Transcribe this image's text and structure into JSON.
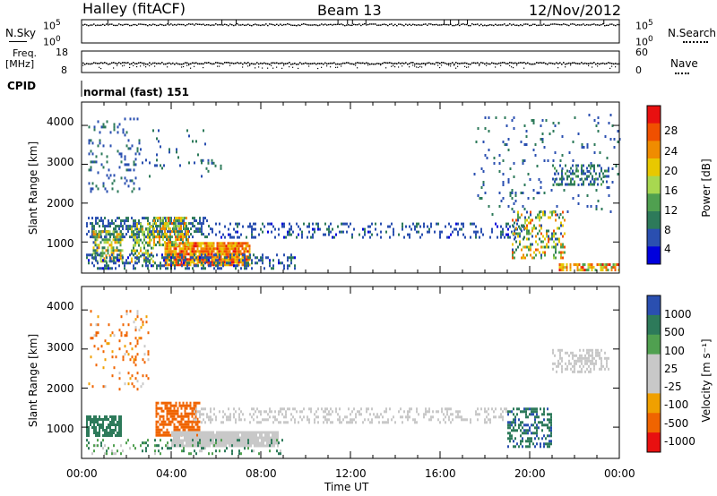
{
  "header": {
    "title": "Halley (fitACF)",
    "beam": "Beam 13",
    "date": "12/Nov/2012"
  },
  "status_panels": {
    "nsky_label": "N.Sky",
    "nsearch_label": "N.Search",
    "nsky_ticks": [
      "10^5",
      "10^0"
    ],
    "nsearch_ticks": [
      "10^5",
      "10^0"
    ],
    "freq_label_line1": "Freq.",
    "freq_label_line2": "[MHz]",
    "freq_ticks": [
      "18",
      "8"
    ],
    "nave_label": "Nave",
    "nave_ticks": [
      "60",
      "0"
    ],
    "cpid_label": "CPID",
    "cpid_value": "normal (fast) 151"
  },
  "colors": {
    "power": [
      "#0000dd",
      "#2a4fb0",
      "#2d7a5a",
      "#50a050",
      "#a8d850",
      "#e8c800",
      "#f08c00",
      "#f05000",
      "#e81010"
    ],
    "velocity": [
      "#2a4fb0",
      "#2d7a5a",
      "#50a050",
      "#c8c8c8",
      "#c8c8c8",
      "#f0a000",
      "#f06400",
      "#e81010"
    ]
  },
  "power_colorbar": {
    "label": "Power [dB]",
    "ticks": [
      "28",
      "24",
      "20",
      "16",
      "12",
      "8",
      "4"
    ]
  },
  "velocity_colorbar": {
    "label": "Velocity [m s⁻¹]",
    "ticks": [
      "1000",
      "500",
      "100",
      "25",
      "-25",
      "-100",
      "-500",
      "-1000"
    ]
  },
  "chart_data": [
    {
      "type": "heatmap",
      "name": "power",
      "ylabel": "Slant Range [km]",
      "ylim": [
        200,
        4600
      ],
      "yticks": [
        1000,
        2000,
        3000,
        4000
      ],
      "x_ticks": [
        "00:00",
        "04:00",
        "08:00",
        "12:00",
        "16:00",
        "20:00",
        "00:00"
      ],
      "x_tick_hours": [
        0,
        4,
        8,
        12,
        16,
        20,
        24
      ],
      "xlim": [
        0,
        24
      ],
      "colorbar_range_dB": [
        0,
        32
      ],
      "regions": [
        {
          "t0": 0.2,
          "t1": 5.8,
          "r0": 1100,
          "r1": 1650,
          "density": 0.45,
          "level": [
            4,
            10
          ]
        },
        {
          "t0": 5.8,
          "t1": 19.8,
          "r0": 1100,
          "r1": 1500,
          "density": 0.25,
          "level": [
            3,
            8
          ]
        },
        {
          "t0": 0.5,
          "t1": 1.8,
          "r0": 500,
          "r1": 1300,
          "density": 0.6,
          "level": [
            6,
            24
          ]
        },
        {
          "t0": 2.2,
          "t1": 3.2,
          "r0": 500,
          "r1": 1500,
          "density": 0.5,
          "level": [
            6,
            22
          ]
        },
        {
          "t0": 3.7,
          "t1": 7.5,
          "r0": 400,
          "r1": 1000,
          "density": 0.9,
          "level": [
            18,
            30
          ]
        },
        {
          "t0": 3.2,
          "t1": 4.8,
          "r0": 900,
          "r1": 1650,
          "density": 0.6,
          "level": [
            8,
            26
          ]
        },
        {
          "t0": 0.2,
          "t1": 9.5,
          "r0": 300,
          "r1": 700,
          "density": 0.35,
          "level": [
            3,
            10
          ]
        },
        {
          "t0": 0.3,
          "t1": 2.6,
          "r0": 2300,
          "r1": 4200,
          "density": 0.12,
          "level": [
            4,
            9
          ]
        },
        {
          "t0": 2.6,
          "t1": 5.5,
          "r0": 2700,
          "r1": 3900,
          "density": 0.06,
          "level": [
            4,
            9
          ]
        },
        {
          "t0": 5.3,
          "t1": 6.3,
          "r0": 2800,
          "r1": 3200,
          "density": 0.2,
          "level": [
            4,
            9
          ]
        },
        {
          "t0": 17.5,
          "t1": 24,
          "r0": 1700,
          "r1": 4300,
          "density": 0.05,
          "level": [
            4,
            9
          ]
        },
        {
          "t0": 21.0,
          "t1": 23.5,
          "r0": 2500,
          "r1": 3000,
          "density": 0.4,
          "level": [
            4,
            12
          ]
        },
        {
          "t0": 19.2,
          "t1": 21.6,
          "r0": 600,
          "r1": 1800,
          "density": 0.35,
          "level": [
            4,
            28
          ]
        },
        {
          "t0": 21.3,
          "t1": 24,
          "r0": 250,
          "r1": 450,
          "density": 0.6,
          "level": [
            12,
            30
          ]
        }
      ]
    },
    {
      "type": "heatmap",
      "name": "velocity",
      "ylabel": "Slant Range [km]",
      "ylim": [
        200,
        4600
      ],
      "yticks": [
        1000,
        2000,
        3000,
        4000
      ],
      "x_ticks": [
        "00:00",
        "04:00",
        "08:00",
        "12:00",
        "16:00",
        "20:00",
        "00:00"
      ],
      "x_tick_hours": [
        0,
        4,
        8,
        12,
        16,
        20,
        24
      ],
      "xlim": [
        0,
        24
      ],
      "xlabel": "Time UT",
      "regions": [
        {
          "t0": 0.2,
          "t1": 1.8,
          "r0": 800,
          "r1": 1300,
          "density": 0.7,
          "vel": [
            100,
            500
          ]
        },
        {
          "t0": 3.3,
          "t1": 5.3,
          "r0": 800,
          "r1": 1650,
          "density": 0.7,
          "vel": [
            -500,
            -100
          ]
        },
        {
          "t0": 4.0,
          "t1": 8.8,
          "r0": 500,
          "r1": 900,
          "density": 0.95,
          "vel": [
            -25,
            25
          ]
        },
        {
          "t0": 5.0,
          "t1": 19.0,
          "r0": 1100,
          "r1": 1500,
          "density": 0.3,
          "vel": [
            -25,
            25
          ]
        },
        {
          "t0": 0.3,
          "t1": 3.0,
          "r0": 2000,
          "r1": 4000,
          "density": 0.12,
          "vel": [
            -300,
            25
          ]
        },
        {
          "t0": 19.0,
          "t1": 21.0,
          "r0": 500,
          "r1": 1500,
          "density": 0.4,
          "vel": [
            100,
            600
          ]
        },
        {
          "t0": 21.0,
          "t1": 23.5,
          "r0": 2400,
          "r1": 3000,
          "density": 0.4,
          "vel": [
            -25,
            25
          ]
        },
        {
          "t0": 0.2,
          "t1": 9.0,
          "r0": 300,
          "r1": 700,
          "density": 0.2,
          "vel": [
            -25,
            200
          ]
        }
      ]
    }
  ]
}
